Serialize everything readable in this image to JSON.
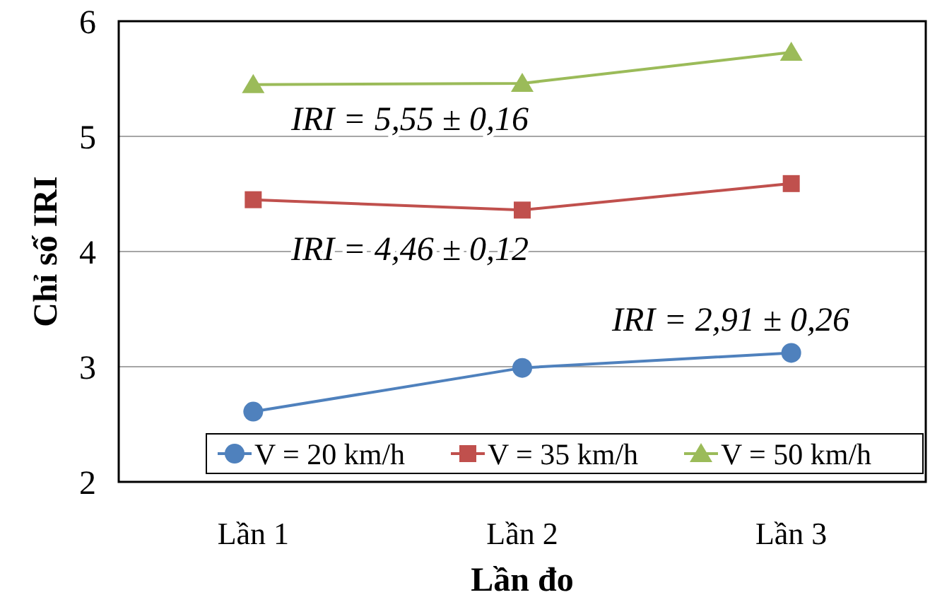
{
  "chart_data": {
    "type": "line",
    "xlabel": "Lần đo",
    "ylabel": "Chỉ số IRI",
    "categories": [
      "Lần 1",
      "Lần 2",
      "Lần 3"
    ],
    "series": [
      {
        "name": "V = 20 km/h",
        "color": "#4f81bd",
        "marker": "circle",
        "values": [
          2.61,
          2.99,
          3.12
        ]
      },
      {
        "name": "V = 35 km/h",
        "color": "#c0504d",
        "marker": "square",
        "values": [
          4.45,
          4.36,
          4.59
        ]
      },
      {
        "name": "V = 50 km/h",
        "color": "#9bbb59",
        "marker": "triangle",
        "values": [
          5.45,
          5.46,
          5.73
        ]
      }
    ],
    "ylim": [
      2,
      6
    ],
    "yticks": [
      2,
      3,
      4,
      5,
      6
    ],
    "grid": "y",
    "legend": "bottom right",
    "annotations": [
      "IRI = 5,55 ± 0,16",
      "IRI = 4,46 ± 0,12",
      "IRI = 2,91 ± 0,26"
    ]
  }
}
